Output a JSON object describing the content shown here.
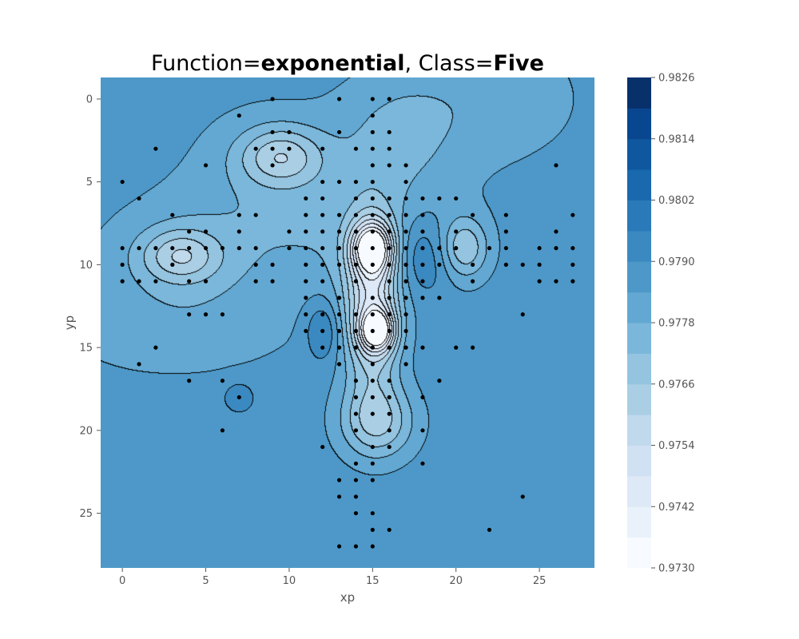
{
  "chart_data": {
    "type": "heatmap",
    "subtype": "filled-contour",
    "title": {
      "prefix": "Function=",
      "function": "exponential",
      "separator": ", Class=",
      "class": "Five"
    },
    "xlabel": "xp",
    "ylabel": "yp",
    "xlim": [
      -1.3,
      28.3
    ],
    "ylim": [
      28.3,
      -1.3
    ],
    "y_inverted": true,
    "x_ticks": [
      0,
      5,
      10,
      15,
      20,
      25
    ],
    "y_ticks": [
      0,
      5,
      10,
      15,
      20,
      25
    ],
    "grid": false,
    "colormap": "Blues",
    "colorbar": {
      "min": 0.973,
      "max": 0.9826,
      "ticks": [
        "0.9730",
        "0.9742",
        "0.9754",
        "0.9766",
        "0.9778",
        "0.9790",
        "0.9802",
        "0.9814",
        "0.9826"
      ],
      "levels": 16,
      "colors": [
        "#f7fbff",
        "#e9f2fb",
        "#dde9f7",
        "#d0e1f3",
        "#c1d9ed",
        "#aacfe5",
        "#94c4df",
        "#7ab7da",
        "#62a8d2",
        "#4d98c8",
        "#3b89c1",
        "#2a79b8",
        "#1a68ae",
        "#0f58a0",
        "#08468f",
        "#08306b"
      ]
    },
    "background_value": 0.9787,
    "features": [
      {
        "x": 15,
        "y": 12.5,
        "rx": 1.6,
        "ry": 5.0,
        "value": 0.9752
      },
      {
        "x": 15,
        "y": 9,
        "rx": 1.2,
        "ry": 1.5,
        "value": 0.9744
      },
      {
        "x": 15.3,
        "y": 14,
        "rx": 1.0,
        "ry": 1.2,
        "value": 0.9747
      },
      {
        "x": 15.3,
        "y": 19.5,
        "rx": 2.2,
        "ry": 2.2,
        "value": 0.9766
      },
      {
        "x": 15,
        "y": 8,
        "rx": 5.5,
        "ry": 4.5,
        "value": 0.9779
      },
      {
        "x": 9.5,
        "y": 3.5,
        "rx": 2.5,
        "ry": 1.8,
        "value": 0.9766
      },
      {
        "x": 3.5,
        "y": 9.5,
        "rx": 2.3,
        "ry": 1.6,
        "value": 0.9768
      },
      {
        "x": 3.5,
        "y": 9.5,
        "rx": 5.5,
        "ry": 3.5,
        "value": 0.978
      },
      {
        "x": 8.5,
        "y": 5.5,
        "rx": 5.5,
        "ry": 5.5,
        "value": 0.9781
      },
      {
        "x": 20.5,
        "y": 9,
        "rx": 1.4,
        "ry": 1.8,
        "value": 0.9768
      },
      {
        "x": 18,
        "y": 9.5,
        "rx": 1.8,
        "ry": 2.5,
        "value": 0.98
      },
      {
        "x": 12,
        "y": 14,
        "rx": 1.0,
        "ry": 1.8,
        "value": 0.9799
      },
      {
        "x": 7,
        "y": 18,
        "rx": 0.9,
        "ry": 0.9,
        "value": 0.9796
      },
      {
        "x": 16.5,
        "y": 2,
        "rx": 3.5,
        "ry": 3.5,
        "value": 0.9779
      },
      {
        "x": 22,
        "y": 0,
        "rx": 5.5,
        "ry": 4.0,
        "value": 0.978
      },
      {
        "x": 3,
        "y": 14,
        "rx": 7.0,
        "ry": 3.0,
        "value": 0.9781
      }
    ],
    "points": [
      [
        9,
        0
      ],
      [
        13,
        0
      ],
      [
        15,
        0
      ],
      [
        16,
        0
      ],
      [
        7,
        1
      ],
      [
        15,
        1
      ],
      [
        9,
        2
      ],
      [
        10,
        2
      ],
      [
        13,
        2
      ],
      [
        15,
        2
      ],
      [
        16,
        2
      ],
      [
        2,
        3
      ],
      [
        8,
        3
      ],
      [
        9,
        3
      ],
      [
        10,
        3
      ],
      [
        12,
        3
      ],
      [
        14,
        3
      ],
      [
        15,
        3
      ],
      [
        16,
        3
      ],
      [
        5,
        4
      ],
      [
        9,
        4
      ],
      [
        15,
        4
      ],
      [
        16,
        4
      ],
      [
        17,
        4
      ],
      [
        26,
        4
      ],
      [
        0,
        5
      ],
      [
        12,
        5
      ],
      [
        13,
        5
      ],
      [
        14,
        5
      ],
      [
        15,
        5
      ],
      [
        17,
        5
      ],
      [
        1,
        6
      ],
      [
        11,
        6
      ],
      [
        12,
        6
      ],
      [
        14,
        6
      ],
      [
        15,
        6
      ],
      [
        16,
        6
      ],
      [
        17,
        6
      ],
      [
        18,
        6
      ],
      [
        19,
        6
      ],
      [
        20,
        6
      ],
      [
        3,
        7
      ],
      [
        7,
        7
      ],
      [
        8,
        7
      ],
      [
        11,
        7
      ],
      [
        12,
        7
      ],
      [
        13,
        7
      ],
      [
        14,
        7
      ],
      [
        15,
        7
      ],
      [
        16,
        7
      ],
      [
        17,
        7
      ],
      [
        18,
        7
      ],
      [
        21,
        7
      ],
      [
        23,
        7
      ],
      [
        27,
        7
      ],
      [
        4,
        8
      ],
      [
        5,
        8
      ],
      [
        7,
        8
      ],
      [
        10,
        8
      ],
      [
        11,
        8
      ],
      [
        12,
        8
      ],
      [
        13,
        8
      ],
      [
        14,
        8
      ],
      [
        15,
        8
      ],
      [
        16,
        8
      ],
      [
        17,
        8
      ],
      [
        18,
        8
      ],
      [
        20,
        8
      ],
      [
        23,
        8
      ],
      [
        26,
        8
      ],
      [
        0,
        9
      ],
      [
        1,
        9
      ],
      [
        2,
        9
      ],
      [
        3,
        9
      ],
      [
        4,
        9
      ],
      [
        5,
        9
      ],
      [
        6,
        9
      ],
      [
        7,
        9
      ],
      [
        8,
        9
      ],
      [
        10,
        9
      ],
      [
        11,
        9
      ],
      [
        12,
        9
      ],
      [
        13,
        9
      ],
      [
        14,
        9
      ],
      [
        15,
        9
      ],
      [
        16,
        9
      ],
      [
        17,
        9
      ],
      [
        18,
        9
      ],
      [
        19,
        9
      ],
      [
        20,
        9
      ],
      [
        22,
        9
      ],
      [
        23,
        9
      ],
      [
        25,
        9
      ],
      [
        26,
        9
      ],
      [
        27,
        9
      ],
      [
        0,
        10
      ],
      [
        3,
        10
      ],
      [
        8,
        10
      ],
      [
        9,
        10
      ],
      [
        11,
        10
      ],
      [
        12,
        10
      ],
      [
        13,
        10
      ],
      [
        14,
        10
      ],
      [
        15,
        10
      ],
      [
        16,
        10
      ],
      [
        17,
        10
      ],
      [
        18,
        10
      ],
      [
        19,
        10
      ],
      [
        21,
        10
      ],
      [
        23,
        10
      ],
      [
        24,
        10
      ],
      [
        25,
        10
      ],
      [
        27,
        10
      ],
      [
        0,
        11
      ],
      [
        1,
        11
      ],
      [
        2,
        11
      ],
      [
        4,
        11
      ],
      [
        5,
        11
      ],
      [
        8,
        11
      ],
      [
        9,
        11
      ],
      [
        11,
        11
      ],
      [
        12,
        11
      ],
      [
        14,
        11
      ],
      [
        16,
        11
      ],
      [
        17,
        11
      ],
      [
        18,
        11
      ],
      [
        21,
        11
      ],
      [
        25,
        11
      ],
      [
        26,
        11
      ],
      [
        27,
        11
      ],
      [
        11,
        12
      ],
      [
        13,
        12
      ],
      [
        15,
        12
      ],
      [
        16,
        12
      ],
      [
        17,
        12
      ],
      [
        18,
        12
      ],
      [
        19,
        12
      ],
      [
        4,
        13
      ],
      [
        5,
        13
      ],
      [
        6,
        13
      ],
      [
        11,
        13
      ],
      [
        12,
        13
      ],
      [
        13,
        13
      ],
      [
        14,
        13
      ],
      [
        15,
        13
      ],
      [
        16,
        13
      ],
      [
        17,
        13
      ],
      [
        24,
        13
      ],
      [
        11,
        14
      ],
      [
        12,
        14
      ],
      [
        13,
        14
      ],
      [
        14,
        14
      ],
      [
        15,
        14
      ],
      [
        16,
        14
      ],
      [
        17,
        14
      ],
      [
        2,
        15
      ],
      [
        12,
        15
      ],
      [
        13,
        15
      ],
      [
        14,
        15
      ],
      [
        15,
        15
      ],
      [
        16,
        15
      ],
      [
        17,
        15
      ],
      [
        18,
        15
      ],
      [
        20,
        15
      ],
      [
        21,
        15
      ],
      [
        1,
        16
      ],
      [
        13,
        16
      ],
      [
        15,
        16
      ],
      [
        17,
        16
      ],
      [
        4,
        17
      ],
      [
        6,
        17
      ],
      [
        14,
        17
      ],
      [
        15,
        17
      ],
      [
        16,
        17
      ],
      [
        19,
        17
      ],
      [
        7,
        18
      ],
      [
        14,
        18
      ],
      [
        15,
        18
      ],
      [
        16,
        18
      ],
      [
        18,
        18
      ],
      [
        14,
        19
      ],
      [
        15,
        19
      ],
      [
        16,
        19
      ],
      [
        6,
        20
      ],
      [
        14,
        20
      ],
      [
        16,
        20
      ],
      [
        18,
        20
      ],
      [
        12,
        21
      ],
      [
        15,
        21
      ],
      [
        16,
        21
      ],
      [
        14,
        22
      ],
      [
        15,
        22
      ],
      [
        18,
        22
      ],
      [
        13,
        23
      ],
      [
        14,
        23
      ],
      [
        15,
        23
      ],
      [
        13,
        24
      ],
      [
        14,
        24
      ],
      [
        24,
        24
      ],
      [
        14,
        25
      ],
      [
        15,
        25
      ],
      [
        15,
        26
      ],
      [
        16,
        26
      ],
      [
        22,
        26
      ],
      [
        13,
        27
      ],
      [
        14,
        27
      ],
      [
        15,
        27
      ]
    ]
  }
}
